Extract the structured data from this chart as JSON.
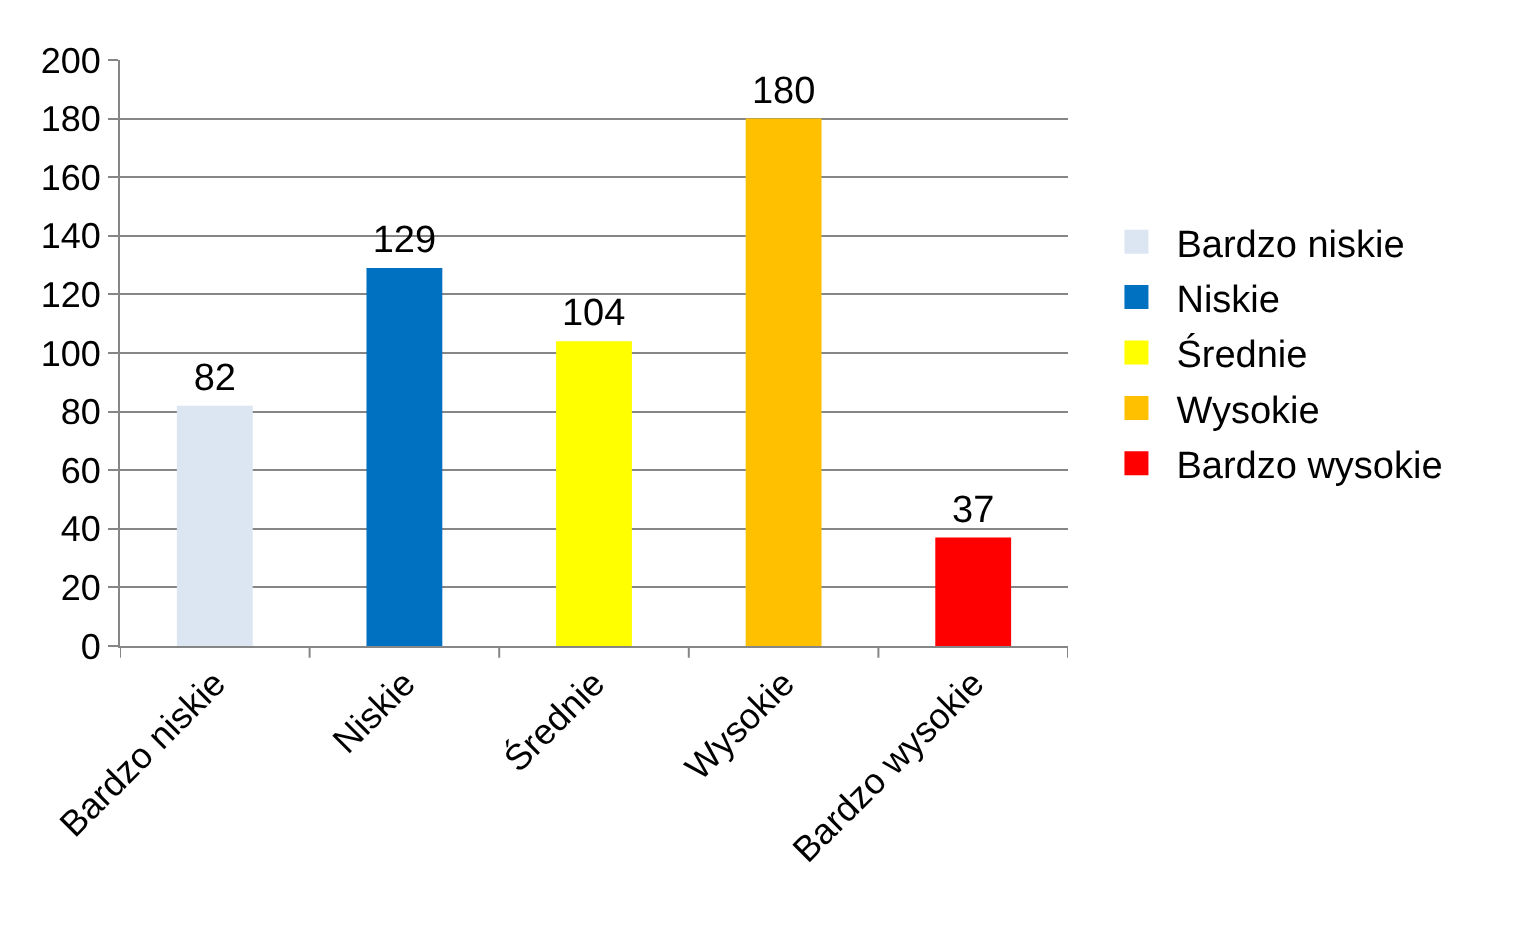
{
  "chart_data": {
    "type": "bar",
    "categories": [
      "Bardzo niskie",
      "Niskie",
      "Średnie",
      "Wysokie",
      "Bardzo wysokie"
    ],
    "series": [
      {
        "name": "Bardzo niskie",
        "color": "#dce6f2",
        "values": [
          82,
          null,
          null,
          null,
          null
        ]
      },
      {
        "name": "Niskie",
        "color": "#0070c0",
        "values": [
          null,
          129,
          null,
          null,
          null
        ]
      },
      {
        "name": "Średnie",
        "color": "#ffff00",
        "values": [
          null,
          null,
          104,
          null,
          null
        ]
      },
      {
        "name": "Wysokie",
        "color": "#ffc000",
        "values": [
          null,
          null,
          null,
          180,
          null
        ]
      },
      {
        "name": "Bardzo wysokie",
        "color": "#ff0000",
        "values": [
          null,
          null,
          null,
          null,
          37
        ]
      }
    ],
    "ylim": [
      0,
      200
    ],
    "yticks": [
      0,
      20,
      40,
      60,
      80,
      100,
      120,
      140,
      160,
      180,
      200
    ],
    "grid": "y",
    "legend": "right",
    "data_labels": true
  }
}
